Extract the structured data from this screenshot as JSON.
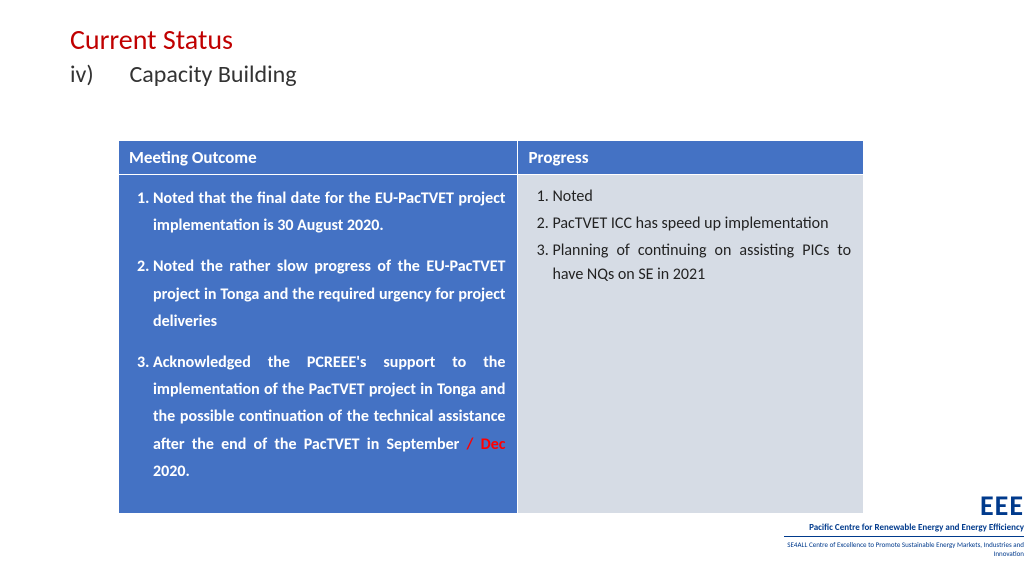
{
  "title": "Current Status",
  "subtitle": {
    "num": "iv)",
    "text": "Capacity Building"
  },
  "table": {
    "header": {
      "c1": "Meeting Outcome",
      "c2": "Progress"
    },
    "outcome": {
      "i1": "Noted that the final date for the EU-PacTVET project implementation is 30 August 2020.",
      "i2": "Noted the rather slow progress of the EU-PacTVET project in Tonga and the required urgency for project deliveries",
      "i3a": "Acknowledged the PCREEE's support to  the implementation of the PacTVET project in Tonga and the possible continuation of the technical assistance after the end of the PacTVET in September ",
      "i3b": "/ Dec",
      "i3c": " 2020."
    },
    "progress": {
      "i1": "Noted",
      "i2": "PacTVET ICC has speed up implementation",
      "i3": "Planning of continuing on assisting PICs to have NQs on SE in 2021"
    }
  },
  "logo": {
    "abbr": "EEE",
    "line1": "Pacific Centre for Renewable Energy and Energy Efficiency",
    "line2": "SE4ALL Centre of Excellence to Promote Sustainable Energy Markets, Industries and Innovation"
  },
  "colors": {
    "title": "#c00000",
    "header_bg": "#4472c4",
    "body_left_bg": "#4472c4",
    "body_right_bg": "#d6dce5",
    "accent_red": "#ff0000",
    "logo_color": "#003a8c"
  }
}
